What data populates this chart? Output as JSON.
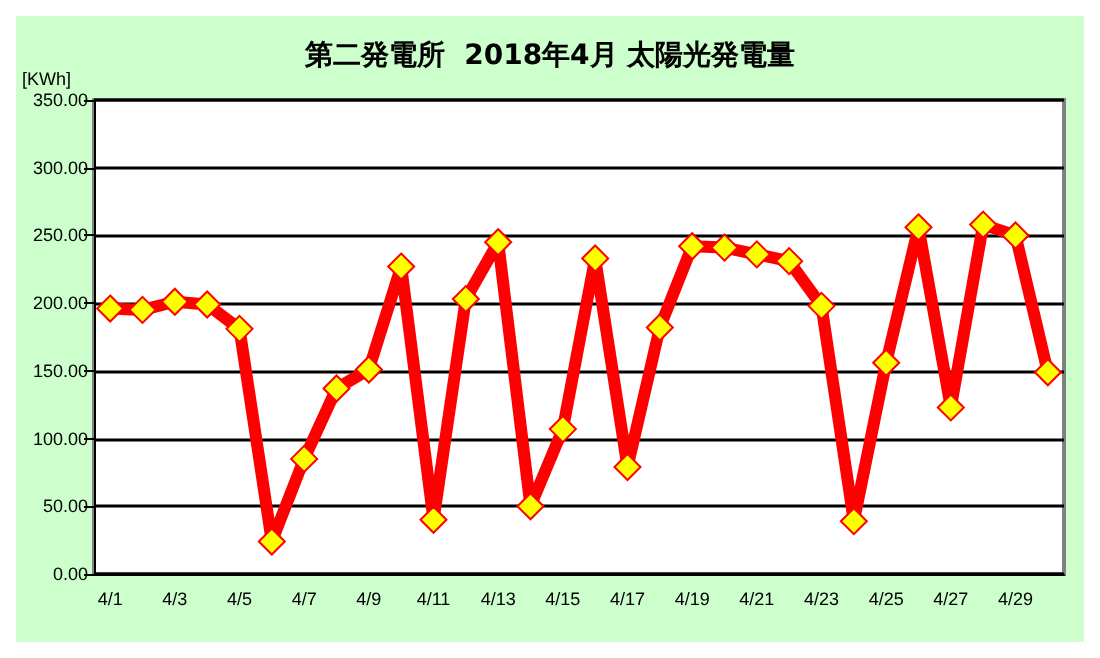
{
  "chart_data": {
    "type": "line",
    "title": "第二発電所  2018年4月 太陽光発電量",
    "ylabel": "[KWh]",
    "categories": [
      "4/1",
      null,
      "4/3",
      null,
      "4/5",
      null,
      "4/7",
      null,
      "4/9",
      null,
      "4/11",
      null,
      "4/13",
      null,
      "4/15",
      null,
      "4/17",
      null,
      "4/19",
      null,
      "4/21",
      null,
      "4/23",
      null,
      "4/25",
      null,
      "4/27",
      null,
      "4/29",
      null
    ],
    "series": [
      {
        "color": "#ff0000",
        "values": [
          196,
          195,
          201,
          199,
          181,
          24,
          85,
          137,
          151,
          227,
          40,
          203,
          245,
          50,
          107,
          233,
          79,
          182,
          242,
          241,
          236,
          231,
          198,
          39,
          156,
          256,
          123,
          258,
          250,
          149
        ]
      }
    ],
    "ylim": [
      0,
      350
    ],
    "yticks": [
      {
        "value": 0,
        "label": "0.00"
      },
      {
        "value": 50,
        "label": "50.00"
      },
      {
        "value": 100,
        "label": "100.00"
      },
      {
        "value": 150,
        "label": "150.00"
      },
      {
        "value": 200,
        "label": "200.00"
      },
      {
        "value": 250,
        "label": "250.00"
      },
      {
        "value": 300,
        "label": "300.00"
      },
      {
        "value": 350,
        "label": "350.00"
      }
    ],
    "grid": "y",
    "marker": "diamond",
    "line_style": "solid"
  }
}
